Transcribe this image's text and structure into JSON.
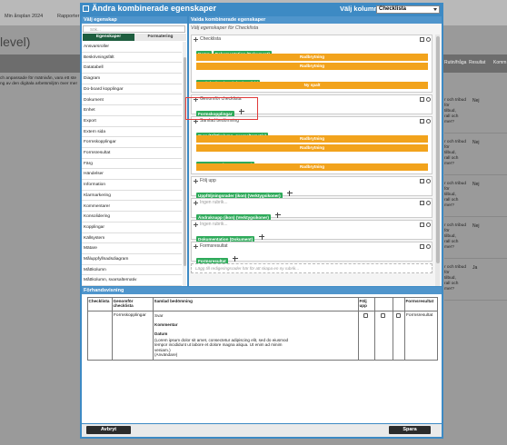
{
  "topbar": [
    "Min årsplan 2024",
    "Rapporter"
  ],
  "heading": "level)",
  "intro": [
    "ch anpassade för mätnivån, vara ett ste",
    "ng av den digitala arbetsmiljön över mer"
  ],
  "background_table": {
    "headers": [
      "Rutin/fråga",
      "Resultat",
      "Komm"
    ],
    "rows": [
      {
        "text": [
          "r och tribud",
          "för",
          "tilbud,",
          "rall och",
          "mer?"
        ],
        "answer": "Nej"
      },
      {
        "text": [
          "r och tribud",
          "för",
          "tilbud,",
          "rall och",
          "mer?"
        ],
        "answer": "Nej"
      },
      {
        "text": [
          "r och tribud",
          "för",
          "tilbud,",
          "rall och",
          "mer?"
        ],
        "answer": "Nej"
      },
      {
        "text": [
          "r och tribud",
          "för",
          "tilbud,",
          "rall och",
          "mer?"
        ],
        "answer": "Nej"
      },
      {
        "text": [
          "r och tribud",
          "för",
          "tilbud,",
          "rall och",
          "mer?"
        ],
        "answer": "Ja"
      }
    ]
  },
  "dialog": {
    "title": "Ändra kombinerade egenskaper",
    "column_label": "Välj kolumn",
    "column_value": "Checklista",
    "left": {
      "title": "Välj egenskap",
      "search": "Sök...",
      "tabs": [
        "Egenskaper",
        "Formatering"
      ],
      "items": [
        "Ansvarsroller",
        "Beskrivningsfält",
        "Datatabell",
        "Diagram",
        "Do-board kopplingar",
        "Dokument",
        "Enhet",
        "Export",
        "Extern sida",
        "Formskopplingar",
        "Formsresultat",
        "Färg",
        "Händelser",
        "Information",
        "Klarmarkering",
        "Kommentarer",
        "Konsolidering",
        "Kopplingar",
        "Källsystem",
        "Mätare",
        "Måluppfyllnadsdiagram",
        "Måttkolumn",
        "Måttkolumn, svarsalternativ"
      ]
    },
    "right": {
      "title": "Valda kombinerade egenskaper",
      "subtitle": "Välj egenskaper för Checklista",
      "groups": [
        {
          "title": "Checklista",
          "lines": [
            [
              {
                "text": "Namn",
                "color": "#2eaa5a"
              },
              {
                "text": "Dokumentation (Dokument)",
                "color": "#2eaa5a"
              }
            ],
            [
              {
                "text": "Radbrytning",
                "color": "#f2a31c"
              }
            ],
            [
              {
                "text": "Radbrytning",
                "color": "#f2a31c"
              }
            ],
            [
              {
                "text": "Beskrivning (Beskrivningsfält)",
                "color": "#2eaa5a"
              }
            ],
            [
              {
                "text": "Ny spalt",
                "color": "#f2a31c"
              }
            ]
          ]
        },
        {
          "title": "Genomför checklista",
          "lines": [
            [
              {
                "text": "Formskopplingar",
                "color": "#2eaa5a"
              }
            ]
          ]
        },
        {
          "title": "Samlad bedömning",
          "lines": [
            [
              {
                "text": "Svar (Måttkolumn, svarsalternativ)",
                "color": "#2eaa5a"
              }
            ],
            [
              {
                "text": "Radbrytning",
                "color": "#f2a31c"
              }
            ],
            [
              {
                "text": "Radbrytning",
                "color": "#f2a31c"
              }
            ],
            [
              {
                "text": "Kommentar (Kommentarer)",
                "color": "#2eaa5a"
              }
            ],
            [
              {
                "text": "Radbrytning",
                "color": "#f2a31c"
              }
            ]
          ]
        },
        {
          "title": "Följ upp",
          "lines": [
            [
              {
                "text": "Uppföljningsrader (ikon) (Verktygsikoner)",
                "color": "#2eaa5a"
              }
            ]
          ]
        },
        {
          "title": "Ingen rubrik...",
          "lines": [
            [
              {
                "text": "Ändraknapp (ikon) (Verktygsikoner)",
                "color": "#2eaa5a"
              }
            ]
          ]
        },
        {
          "title": "Ingen rubrik...",
          "lines": [
            [
              {
                "text": "Dokumentation (Dokument)",
                "color": "#2eaa5a"
              }
            ]
          ]
        },
        {
          "title": "Formsresultat",
          "lines": [
            [
              {
                "text": "Formsresultat",
                "color": "#2eaa5a"
              }
            ]
          ]
        }
      ],
      "add_hint": "Lägg till redigeringsrader här för att skapa en ny rubrik..."
    },
    "preview": {
      "title": "Förhandsvisning",
      "headers": [
        "Checklista",
        "Genomför checklista",
        "Samlad bedömning",
        "Följ upp",
        null,
        null,
        "Formsresultat"
      ],
      "row": {
        "genomfor": "Formskopplingar",
        "samlad": [
          {
            "text": "Svar"
          },
          {
            "text": "Kommentar",
            "bold": true
          },
          {
            "text": "Datum",
            "bold": true
          },
          {
            "text": "(Lorem ipsum dolor sit amet, consectetur adipiscing elit, sed do eiusmod tempor incididunt ut labore et dolore magna aliqua. Ut enim ad minim veniam.)"
          },
          {
            "text": "(Användare)"
          }
        ],
        "formsresultat": "Formsresultat"
      }
    },
    "buttons": [
      "Avbryt",
      "Spara"
    ]
  }
}
